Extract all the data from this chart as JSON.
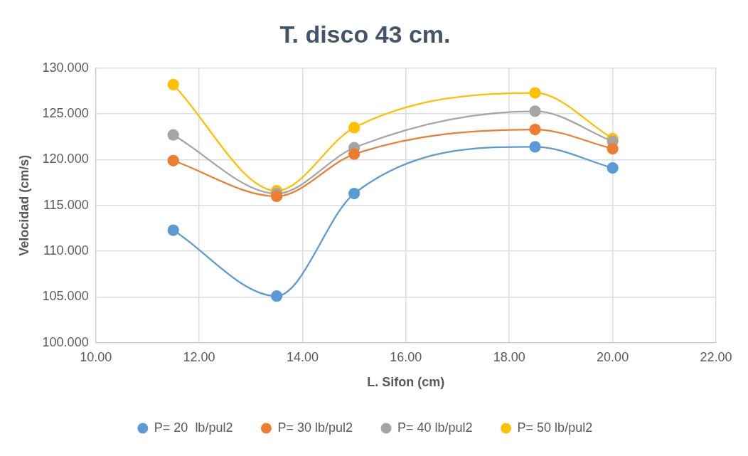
{
  "chart_data": {
    "type": "line",
    "title": "T. disco 43 cm.",
    "xlabel": "L. Sifon (cm)",
    "ylabel": "Velocidad (cm/s)",
    "x": [
      11.5,
      13.5,
      15,
      18.5,
      20
    ],
    "series": [
      {
        "name": "P= 20  lb/pul2",
        "color": "#5b9bd5",
        "values": [
          112.3,
          105.1,
          116.3,
          121.4,
          119.1
        ]
      },
      {
        "name": "P= 30 lb/pul2",
        "color": "#ed7d31",
        "values": [
          119.9,
          116.0,
          120.6,
          123.3,
          121.2
        ]
      },
      {
        "name": "P= 40 lb/pul2",
        "color": "#a5a5a5",
        "values": [
          122.7,
          116.3,
          121.3,
          125.3,
          122.0
        ]
      },
      {
        "name": "P= 50 lb/pul2",
        "color": "#ffc000",
        "values": [
          128.2,
          116.6,
          123.5,
          127.3,
          122.3
        ]
      }
    ],
    "xlim": [
      10,
      22
    ],
    "xticks": [
      {
        "value": 10,
        "label": "10.00"
      },
      {
        "value": 12,
        "label": "12.00"
      },
      {
        "value": 14,
        "label": "14.00"
      },
      {
        "value": 16,
        "label": "16.00"
      },
      {
        "value": 18,
        "label": "18.00"
      },
      {
        "value": 20,
        "label": "20.00"
      },
      {
        "value": 22,
        "label": "22.00"
      }
    ],
    "ylim": [
      100,
      130
    ],
    "yticks": [
      {
        "value": 100,
        "label": "100.000"
      },
      {
        "value": 105,
        "label": "105.000"
      },
      {
        "value": 110,
        "label": "110.000"
      },
      {
        "value": 115,
        "label": "115.000"
      },
      {
        "value": 120,
        "label": "120.000"
      },
      {
        "value": 125,
        "label": "125.000"
      },
      {
        "value": 130,
        "label": "130.000"
      }
    ],
    "grid": true,
    "legend": "bottom",
    "marker": "circle",
    "line_style": "solid"
  }
}
